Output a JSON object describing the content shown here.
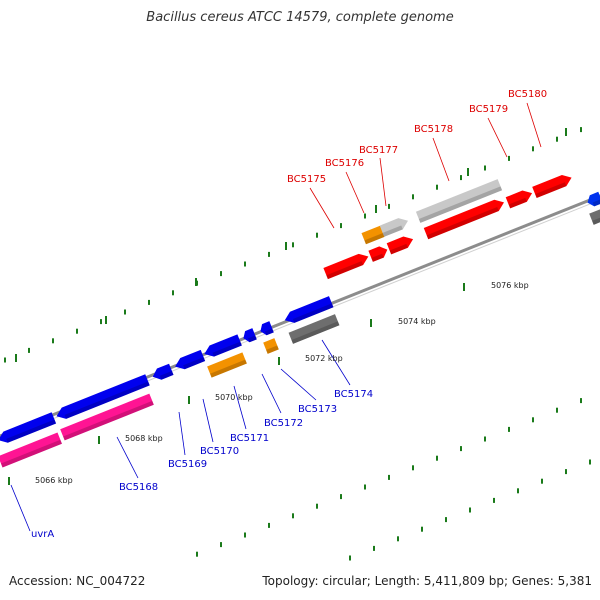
{
  "title": "Bacillus cereus ATCC 14579, complete genome",
  "footer": {
    "accession": "Accession: NC_004722",
    "topology": "Topology: circular; Length: 5,411,809 bp; Genes: 5,381"
  },
  "colors": {
    "forward_cds": "#ff0000",
    "reverse_cds": "#0000ee",
    "pink_feature": "#ff1493",
    "orange_feature": "#f39200",
    "grey_feature": "#c8c8c8",
    "dark_grey_feature": "#6e6e6e",
    "backbone": "#8c8c8c",
    "tick": "#1a7a1a",
    "label_forward": "#dd0000",
    "label_reverse": "#0000cc"
  },
  "ticks": [
    "5066 kbp",
    "5068 kbp",
    "5070 kbp",
    "5072 kbp",
    "5074 kbp",
    "5076 kbp"
  ],
  "genes_forward": [
    "BC5175",
    "BC5176",
    "BC5177",
    "BC5178",
    "BC5179",
    "BC5180"
  ],
  "genes_reverse": [
    "uvrA",
    "BC5168",
    "BC5169",
    "BC5170",
    "BC5171",
    "BC5172",
    "BC5173",
    "BC5174"
  ]
}
